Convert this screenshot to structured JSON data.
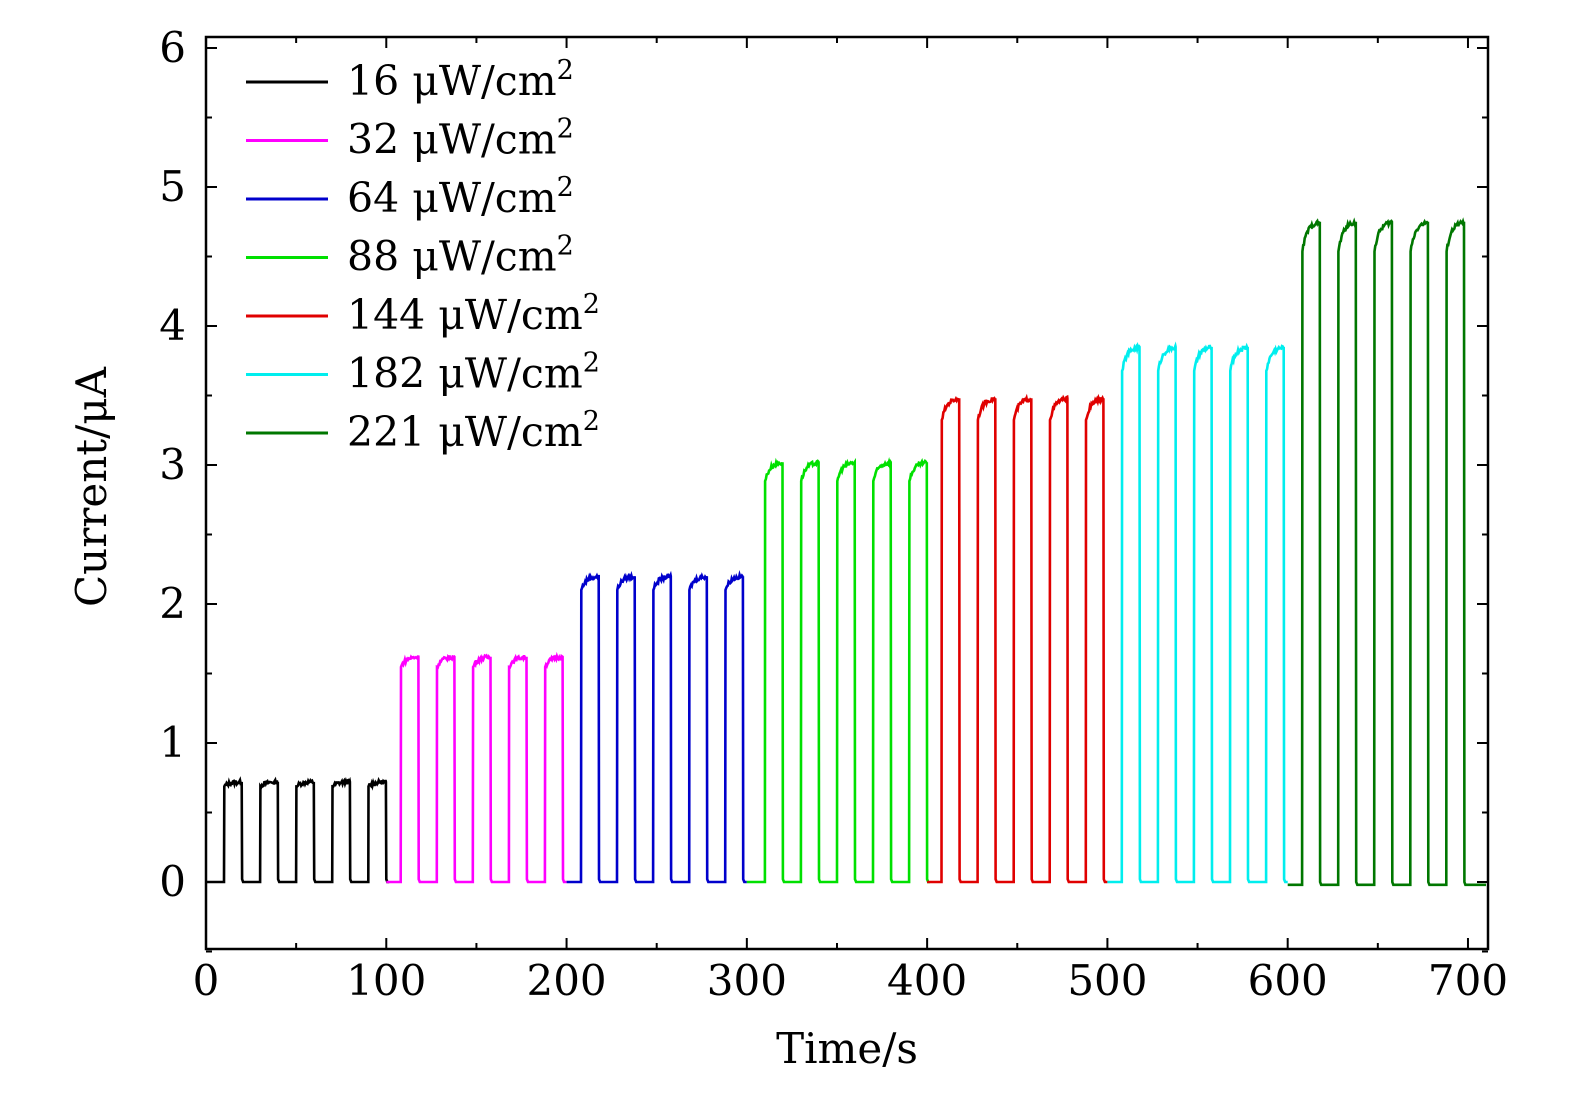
{
  "chart_data": {
    "type": "line",
    "title": "",
    "xlabel": "Time/s",
    "ylabel": "Current/μA",
    "xlim": [
      0,
      710
    ],
    "ylim": [
      -0.5,
      6
    ],
    "xticks": [
      0,
      100,
      200,
      300,
      400,
      500,
      600,
      700
    ],
    "yticks": [
      0,
      1,
      2,
      3,
      4,
      5,
      6
    ],
    "xtick_labels": [
      "0",
      "100",
      "200",
      "300",
      "400",
      "500",
      "600",
      "700"
    ],
    "ytick_labels": [
      "0",
      "1",
      "2",
      "3",
      "4",
      "5",
      "6"
    ],
    "grid": false,
    "legend_position": "top-left",
    "legend_unit": "μW/cm",
    "legend_unit_exp": "2",
    "pulse_period_s": 20,
    "pulses_per_series": 5,
    "series": [
      {
        "name": "16 μW/cm2",
        "label_value": "16",
        "color": "#000000",
        "t_start": 0,
        "t_end": 100,
        "on_start": 10,
        "baseline": 0,
        "plateau": 0.72
      },
      {
        "name": "32 μW/cm2",
        "label_value": "32",
        "color": "#ff00ff",
        "t_start": 100,
        "t_end": 200,
        "on_start": 108,
        "baseline": 0,
        "plateau": 1.62
      },
      {
        "name": "64 μW/cm2",
        "label_value": "64",
        "color": "#0000cc",
        "t_start": 200,
        "t_end": 300,
        "on_start": 208,
        "baseline": 0,
        "plateau": 2.2
      },
      {
        "name": "88 μW/cm2",
        "label_value": "88",
        "color": "#00e000",
        "t_start": 300,
        "t_end": 400,
        "on_start": 310,
        "baseline": 0,
        "plateau": 3.02
      },
      {
        "name": "144 μW/cm2",
        "label_value": "144",
        "color": "#e00000",
        "t_start": 400,
        "t_end": 500,
        "on_start": 408,
        "baseline": 0,
        "plateau": 3.48
      },
      {
        "name": "182 μW/cm2",
        "label_value": "182",
        "color": "#00eeee",
        "t_start": 500,
        "t_end": 600,
        "on_start": 508,
        "baseline": 0,
        "plateau": 3.85
      },
      {
        "name": "221 μW/cm2",
        "label_value": "221",
        "color": "#007700",
        "t_start": 600,
        "t_end": 710,
        "on_start": 608,
        "baseline": -0.02,
        "plateau": 4.75
      }
    ]
  }
}
